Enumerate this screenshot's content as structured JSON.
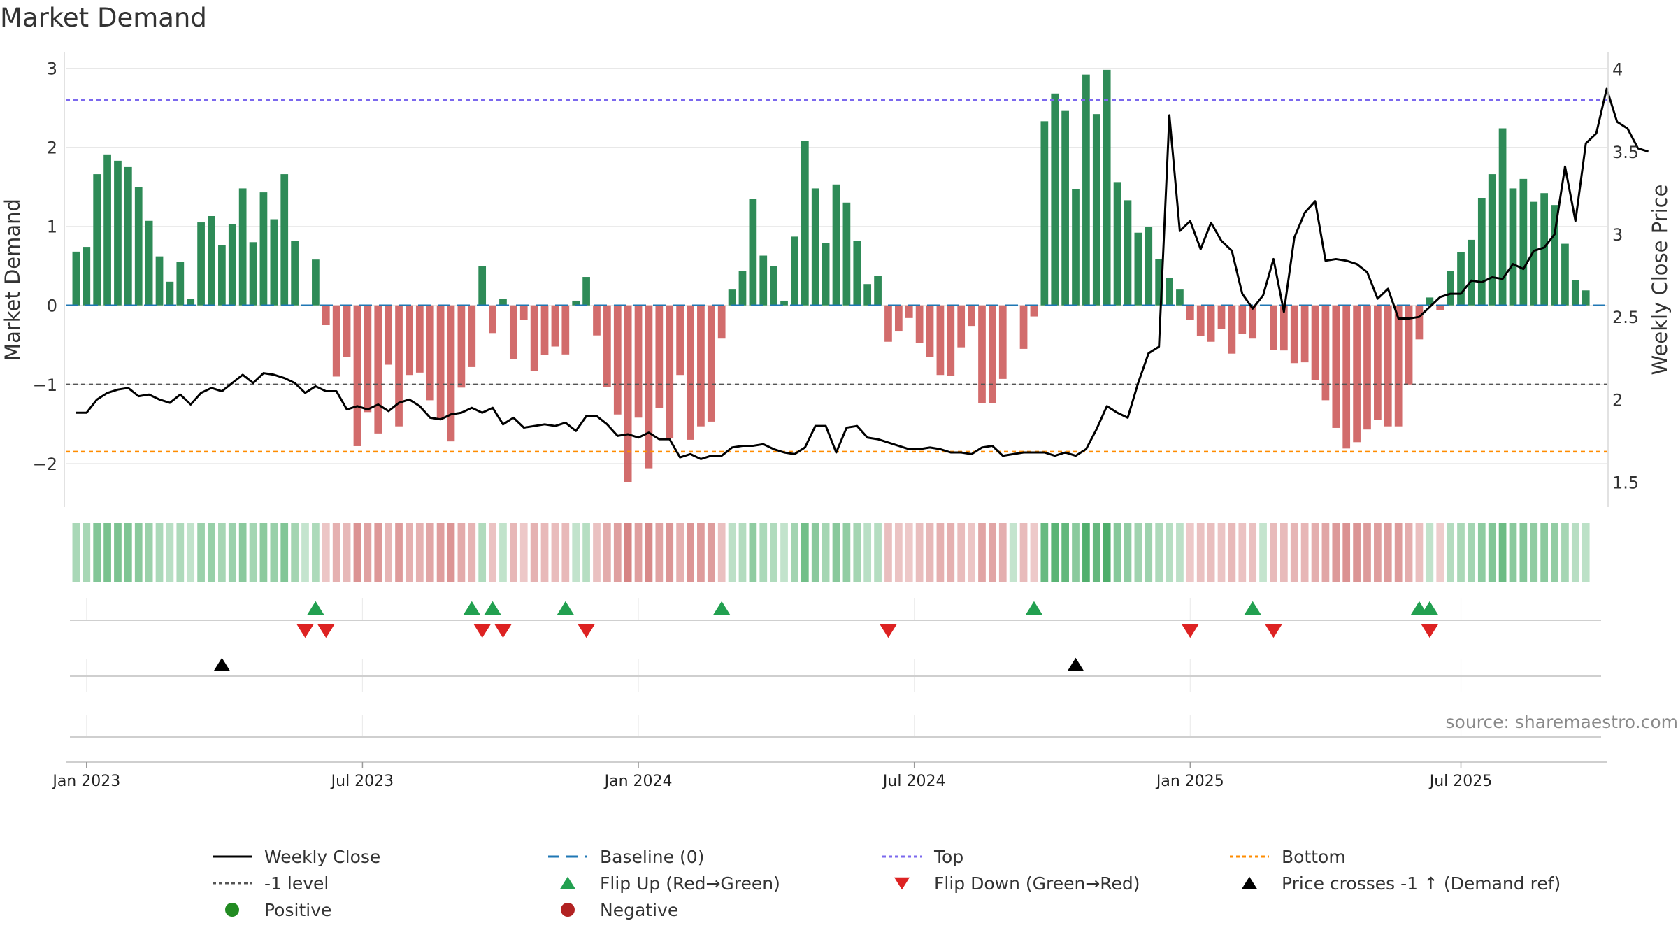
{
  "chart_data": {
    "type": "bar",
    "title": "Market Demand",
    "ylabel": "Market Demand",
    "y2label": "Weekly Close Price",
    "ylim": [
      -2.55,
      3.2
    ],
    "y2lim": [
      1.35,
      4.1
    ],
    "yticks": [
      3,
      2,
      1,
      0,
      -1,
      -2
    ],
    "ytick_labels": [
      "3",
      "2",
      "1",
      "0",
      "−1",
      "−2"
    ],
    "y2ticks": [
      4,
      3.5,
      3,
      2.5,
      2,
      1.5
    ],
    "y2tick_labels": [
      "4",
      "3.5",
      "3",
      "2.5",
      "2",
      "1.5"
    ],
    "x_start_week": 1,
    "x_range_weeks": [
      0,
      148
    ],
    "x_tick_weeks": [
      2,
      28.5,
      55,
      81.5,
      108,
      134
    ],
    "x_tick_labels": [
      "Jan 2023",
      "Jul 2023",
      "Jan 2024",
      "Jul 2024",
      "Jan 2025",
      "Jul 2025"
    ],
    "reference_lines": {
      "top": 2.6,
      "bottom": -1.85,
      "minus_one": -1.0,
      "baseline": 0
    },
    "demand": [
      0.68,
      0.74,
      1.66,
      1.91,
      1.83,
      1.75,
      1.5,
      1.07,
      0.62,
      0.3,
      0.55,
      0.08,
      1.05,
      1.13,
      0.76,
      1.03,
      1.48,
      0.8,
      1.43,
      1.09,
      1.66,
      0.82,
      0.0,
      0.58,
      -0.25,
      -0.9,
      -0.65,
      -1.78,
      -1.35,
      -1.62,
      -0.75,
      -1.53,
      -0.88,
      -0.85,
      -1.2,
      -1.44,
      -1.72,
      -1.04,
      -0.78,
      0.5,
      -0.35,
      0.08,
      -0.68,
      -0.18,
      -0.83,
      -0.63,
      -0.52,
      -0.62,
      0.06,
      0.36,
      -0.38,
      -1.03,
      -1.38,
      -2.24,
      -1.42,
      -2.06,
      -1.3,
      -1.68,
      -0.88,
      -1.7,
      -1.53,
      -1.47,
      -0.42,
      0.2,
      0.44,
      1.35,
      0.63,
      0.5,
      0.06,
      0.87,
      2.08,
      1.48,
      0.79,
      1.53,
      1.3,
      0.82,
      0.27,
      0.37,
      -0.46,
      -0.33,
      -0.16,
      -0.48,
      -0.65,
      -0.88,
      -0.89,
      -0.53,
      -0.26,
      -1.24,
      -1.24,
      -0.93,
      0.0,
      -0.55,
      -0.14,
      2.33,
      2.68,
      2.46,
      1.47,
      2.92,
      2.42,
      2.98,
      1.56,
      1.33,
      0.92,
      0.99,
      0.59,
      0.35,
      0.2,
      -0.18,
      -0.39,
      -0.46,
      -0.3,
      -0.61,
      -0.36,
      -0.42,
      0.0,
      -0.56,
      -0.57,
      -0.73,
      -0.72,
      -0.94,
      -1.2,
      -1.55,
      -1.81,
      -1.73,
      -1.57,
      -1.45,
      -1.53,
      -1.53,
      -1.0,
      -0.43,
      0.1,
      -0.06,
      0.44,
      0.67,
      0.83,
      1.36,
      1.66,
      2.24,
      1.48,
      1.6,
      1.31,
      1.42,
      1.27,
      0.78,
      0.32,
      0.19
    ],
    "price": [
      1.92,
      1.92,
      2.0,
      2.04,
      2.06,
      2.07,
      2.02,
      2.03,
      2.0,
      1.98,
      2.03,
      1.97,
      2.04,
      2.07,
      2.05,
      2.1,
      2.15,
      2.1,
      2.16,
      2.15,
      2.13,
      2.1,
      2.04,
      2.08,
      2.05,
      2.05,
      1.94,
      1.96,
      1.94,
      1.97,
      1.93,
      1.98,
      2.0,
      1.96,
      1.89,
      1.88,
      1.91,
      1.92,
      1.95,
      1.92,
      1.95,
      1.85,
      1.89,
      1.83,
      1.84,
      1.85,
      1.84,
      1.86,
      1.81,
      1.9,
      1.9,
      1.85,
      1.78,
      1.79,
      1.77,
      1.8,
      1.76,
      1.76,
      1.65,
      1.67,
      1.64,
      1.66,
      1.66,
      1.71,
      1.72,
      1.72,
      1.73,
      1.7,
      1.68,
      1.67,
      1.71,
      1.84,
      1.84,
      1.68,
      1.83,
      1.84,
      1.77,
      1.76,
      1.74,
      1.72,
      1.7,
      1.7,
      1.71,
      1.7,
      1.68,
      1.68,
      1.67,
      1.71,
      1.72,
      1.66,
      1.67,
      1.68,
      1.68,
      1.68,
      1.66,
      1.68,
      1.66,
      1.7,
      1.82,
      1.96,
      1.92,
      1.89,
      2.1,
      2.28,
      2.32,
      3.72,
      3.02,
      3.08,
      2.91,
      3.07,
      2.96,
      2.9,
      2.64,
      2.55,
      2.63,
      2.85,
      2.53,
      2.98,
      3.13,
      3.2,
      2.84,
      2.85,
      2.84,
      2.82,
      2.77,
      2.61,
      2.67,
      2.49,
      2.49,
      2.5,
      2.56,
      2.62,
      2.64,
      2.64,
      2.72,
      2.71,
      2.74,
      2.73,
      2.82,
      2.79,
      2.9,
      2.92,
      3.0,
      3.41,
      3.08,
      3.55,
      3.61,
      3.88,
      3.68,
      3.64,
      3.52,
      3.5
    ],
    "flip_up_weeks": [
      24,
      39,
      41,
      48,
      63,
      93,
      114,
      130,
      131
    ],
    "flip_down_weeks": [
      23,
      25,
      40,
      42,
      50,
      79,
      108,
      116,
      131
    ],
    "price_cross_weeks": [
      15,
      97
    ],
    "colors": {
      "positive": "#2e8b57",
      "negative": "#cd5c5c",
      "price": "#000000",
      "top": "#7b68ee",
      "bottom": "#ff8c00",
      "minus_one": "#555555",
      "baseline": "#1f77b4",
      "flip_up": "#22a050",
      "flip_down": "#dd2222",
      "cross": "#000000",
      "positive_dot": "#228b22",
      "negative_dot": "#b22222"
    }
  },
  "source_text": "source: sharemaestro.com",
  "legend": [
    {
      "key": "weekly_close",
      "symbol": "line-black",
      "label": "Weekly Close"
    },
    {
      "key": "baseline",
      "symbol": "dash-blue",
      "label": "Baseline (0)"
    },
    {
      "key": "top",
      "symbol": "dot-purple",
      "label": "Top"
    },
    {
      "key": "bottom",
      "symbol": "dot-orange",
      "label": "Bottom"
    },
    {
      "key": "minus_one",
      "symbol": "dot-gray",
      "label": "-1 level"
    },
    {
      "key": "flip_up",
      "symbol": "triangle-up-green",
      "label": "Flip Up (Red→Green)"
    },
    {
      "key": "flip_down",
      "symbol": "triangle-down-red",
      "label": "Flip Down (Green→Red)"
    },
    {
      "key": "price_cross",
      "symbol": "triangle-up-black",
      "label": "Price crosses -1 ↑ (Demand ref)"
    },
    {
      "key": "positive",
      "symbol": "circle-green",
      "label": "Positive"
    },
    {
      "key": "negative",
      "symbol": "circle-red",
      "label": "Negative"
    }
  ]
}
